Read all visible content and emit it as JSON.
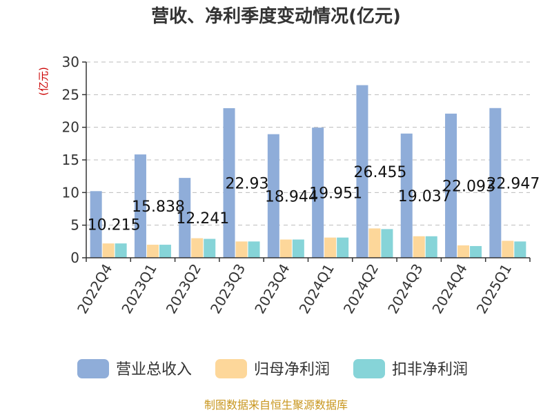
{
  "chart_data": {
    "type": "bar",
    "title": "营收、净利季度变动情况(亿元)",
    "unit_label": "(亿元)",
    "categories": [
      "2022Q4",
      "2023Q1",
      "2023Q2",
      "2023Q3",
      "2023Q4",
      "2024Q1",
      "2024Q2",
      "2024Q3",
      "2024Q4",
      "2025Q1"
    ],
    "ylim": [
      0,
      30
    ],
    "yticks": [
      0,
      5,
      10,
      15,
      20,
      25,
      30
    ],
    "grid": true,
    "legend_position": "bottom",
    "series": [
      {
        "name": "营业总收入",
        "color": "#8fadd9",
        "values": [
          10.215,
          15.838,
          12.241,
          22.93,
          18.944,
          19.951,
          26.455,
          19.037,
          22.093,
          22.947
        ],
        "labels": [
          "10.215",
          "15.838",
          "12.241",
          "22.93",
          "18.944",
          "19.951",
          "26.455",
          "19.037",
          "22.093",
          "22.947"
        ]
      },
      {
        "name": "归母净利润",
        "color": "#fdd79a",
        "values": [
          2.2,
          2.0,
          3.0,
          2.5,
          2.8,
          3.1,
          4.5,
          3.3,
          1.9,
          2.6
        ]
      },
      {
        "name": "扣非净利润",
        "color": "#86d4d8",
        "values": [
          2.2,
          2.0,
          2.9,
          2.5,
          2.8,
          3.1,
          4.4,
          3.3,
          1.8,
          2.5
        ]
      }
    ]
  },
  "footer": {
    "source": "制图数据来自恒生聚源数据库"
  }
}
